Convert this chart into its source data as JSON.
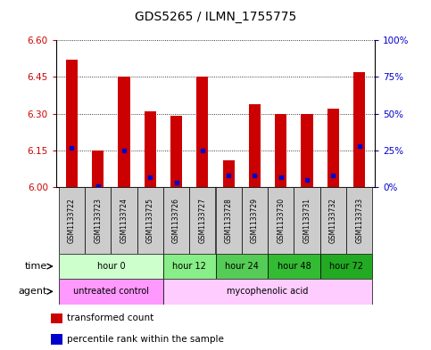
{
  "title": "GDS5265 / ILMN_1755775",
  "samples": [
    "GSM1133722",
    "GSM1133723",
    "GSM1133724",
    "GSM1133725",
    "GSM1133726",
    "GSM1133727",
    "GSM1133728",
    "GSM1133729",
    "GSM1133730",
    "GSM1133731",
    "GSM1133732",
    "GSM1133733"
  ],
  "bar_tops": [
    6.52,
    6.15,
    6.45,
    6.31,
    6.29,
    6.45,
    6.11,
    6.34,
    6.3,
    6.3,
    6.32,
    6.47
  ],
  "bar_bottoms": [
    6.0,
    6.0,
    6.0,
    6.0,
    6.0,
    6.0,
    6.0,
    6.0,
    6.0,
    6.0,
    6.0,
    6.0
  ],
  "blue_vals_pct": [
    27,
    1,
    25,
    7,
    3,
    25,
    8,
    8,
    7,
    5,
    8,
    28
  ],
  "ylim_left": [
    6.0,
    6.6
  ],
  "ylim_right": [
    0,
    100
  ],
  "yticks_left": [
    6.0,
    6.15,
    6.3,
    6.45,
    6.6
  ],
  "yticks_right": [
    0,
    25,
    50,
    75,
    100
  ],
  "ytick_labels_right": [
    "0%",
    "25%",
    "50%",
    "75%",
    "100%"
  ],
  "bar_color": "#cc0000",
  "blue_color": "#0000cc",
  "grid_color": "#000000",
  "sample_bg_color": "#cccccc",
  "time_groups": [
    {
      "label": "hour 0",
      "start": 0,
      "end": 3,
      "color": "#ccffcc"
    },
    {
      "label": "hour 12",
      "start": 4,
      "end": 5,
      "color": "#88ee88"
    },
    {
      "label": "hour 24",
      "start": 6,
      "end": 7,
      "color": "#55cc55"
    },
    {
      "label": "hour 48",
      "start": 8,
      "end": 9,
      "color": "#33bb33"
    },
    {
      "label": "hour 72",
      "start": 10,
      "end": 11,
      "color": "#22aa22"
    }
  ],
  "agent_groups": [
    {
      "label": "untreated control",
      "start": 0,
      "end": 3,
      "color": "#ff99ff"
    },
    {
      "label": "mycophenolic acid",
      "start": 4,
      "end": 11,
      "color": "#ffccff"
    }
  ],
  "legend_items": [
    {
      "color": "#cc0000",
      "label": "transformed count"
    },
    {
      "color": "#0000cc",
      "label": "percentile rank within the sample"
    }
  ],
  "left_tick_color": "#cc0000",
  "right_tick_color": "#0000cc",
  "title_fontsize": 10,
  "bar_width": 0.45
}
